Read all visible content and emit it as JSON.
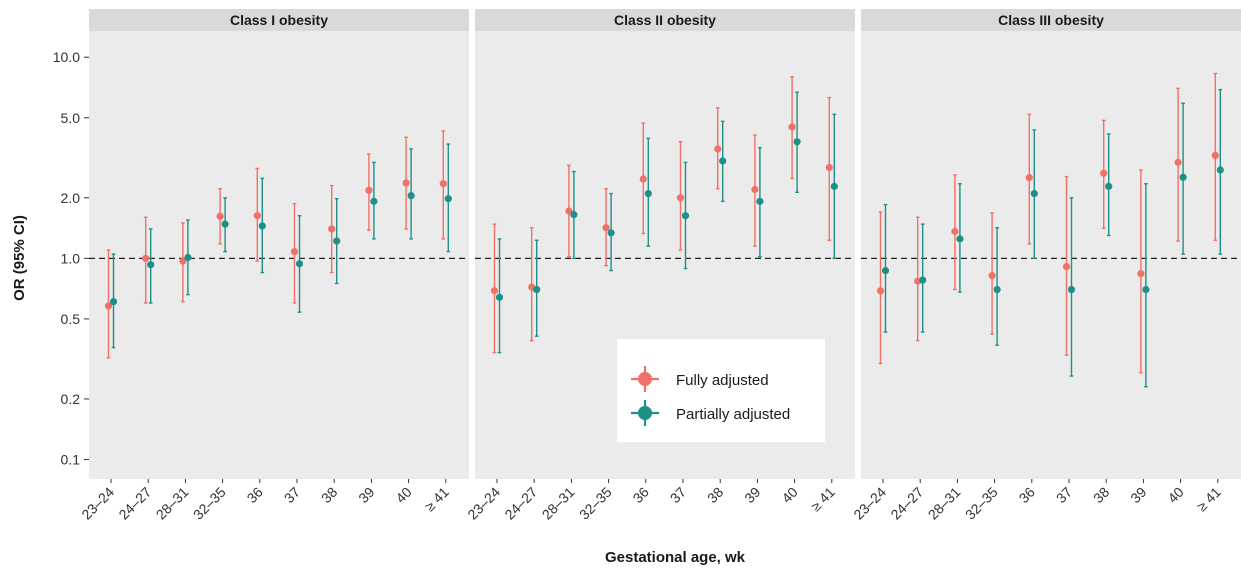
{
  "chart_data": {
    "type": "scatter",
    "subtype": "forest-plot-with-error-bars",
    "ylabel": "OR (95% CI)",
    "xlabel": "Gestational age, wk",
    "y_scale": "log",
    "ylim": [
      0.08,
      13.5
    ],
    "y_ticks": [
      0.1,
      0.2,
      0.5,
      1.0,
      2.0,
      5.0,
      10.0
    ],
    "y_tick_labels": [
      "0.1",
      "0.2",
      "0.5",
      "1.0",
      "2.0",
      "5.0",
      "10.0"
    ],
    "reference_line": 1.0,
    "categories": [
      "23–24",
      "24–27",
      "28–31",
      "32–35",
      "36",
      "37",
      "38",
      "39",
      "40",
      "≥ 41"
    ],
    "legend": {
      "placement": "inside-bottom-right",
      "items": [
        "Fully adjusted",
        "Partially adjusted"
      ]
    },
    "colors": {
      "Fully adjusted": "#f07167",
      "Partially adjusted": "#1f8f88",
      "panel_bg": "#ebebeb",
      "strip_bg": "#d9d9d9"
    },
    "panels": [
      {
        "title": "Class I obesity",
        "series": [
          {
            "name": "Fully adjusted",
            "or": [
              0.58,
              1.0,
              0.97,
              1.62,
              1.63,
              1.08,
              1.4,
              2.18,
              2.37,
              2.35
            ],
            "lower": [
              0.32,
              0.6,
              0.61,
              1.18,
              0.97,
              0.6,
              0.85,
              1.38,
              1.4,
              1.25
            ],
            "upper": [
              1.1,
              1.6,
              1.5,
              2.22,
              2.8,
              1.87,
              2.3,
              3.3,
              4.0,
              4.3
            ]
          },
          {
            "name": "Partially adjusted",
            "or": [
              0.61,
              0.93,
              1.01,
              1.48,
              1.45,
              0.94,
              1.22,
              1.92,
              2.05,
              1.98
            ],
            "lower": [
              0.36,
              0.6,
              0.66,
              1.08,
              0.85,
              0.54,
              0.75,
              1.25,
              1.25,
              1.08
            ],
            "upper": [
              1.05,
              1.4,
              1.55,
              2.0,
              2.5,
              1.63,
              1.98,
              3.0,
              3.5,
              3.7
            ]
          }
        ]
      },
      {
        "title": "Class II obesity",
        "series": [
          {
            "name": "Fully adjusted",
            "or": [
              0.69,
              0.72,
              1.72,
              1.42,
              2.48,
              2.0,
              3.5,
              2.2,
              4.5,
              2.83
            ],
            "lower": [
              0.34,
              0.39,
              1.02,
              0.92,
              1.33,
              1.1,
              2.22,
              1.15,
              2.5,
              1.23
            ],
            "upper": [
              1.48,
              1.42,
              2.9,
              2.22,
              4.7,
              3.8,
              5.6,
              4.1,
              8.0,
              6.3
            ]
          },
          {
            "name": "Partially adjusted",
            "or": [
              0.64,
              0.7,
              1.65,
              1.34,
              2.1,
              1.63,
              3.05,
              1.92,
              3.8,
              2.28
            ],
            "lower": [
              0.34,
              0.41,
              1.0,
              0.87,
              1.15,
              0.89,
              1.92,
              1.02,
              2.13,
              1.0
            ],
            "upper": [
              1.25,
              1.23,
              2.7,
              2.1,
              3.95,
              3.0,
              4.8,
              3.55,
              6.7,
              5.2
            ]
          }
        ]
      },
      {
        "title": "Class III obesity",
        "series": [
          {
            "name": "Fully adjusted",
            "or": [
              0.69,
              0.77,
              1.36,
              0.82,
              2.52,
              0.91,
              2.65,
              0.84,
              3.0,
              3.25
            ],
            "lower": [
              0.3,
              0.39,
              0.7,
              0.42,
              1.18,
              0.33,
              1.41,
              0.27,
              1.22,
              1.23
            ],
            "upper": [
              1.7,
              1.6,
              2.6,
              1.68,
              5.2,
              2.55,
              4.85,
              2.75,
              7.0,
              8.3
            ]
          },
          {
            "name": "Partially adjusted",
            "or": [
              0.87,
              0.78,
              1.25,
              0.7,
              2.1,
              0.7,
              2.28,
              0.7,
              2.53,
              2.75
            ],
            "lower": [
              0.43,
              0.43,
              0.68,
              0.37,
              1.0,
              0.26,
              1.3,
              0.23,
              1.05,
              1.05
            ],
            "upper": [
              1.85,
              1.48,
              2.35,
              1.42,
              4.35,
              2.0,
              4.15,
              2.35,
              5.9,
              6.9
            ]
          }
        ]
      }
    ]
  }
}
